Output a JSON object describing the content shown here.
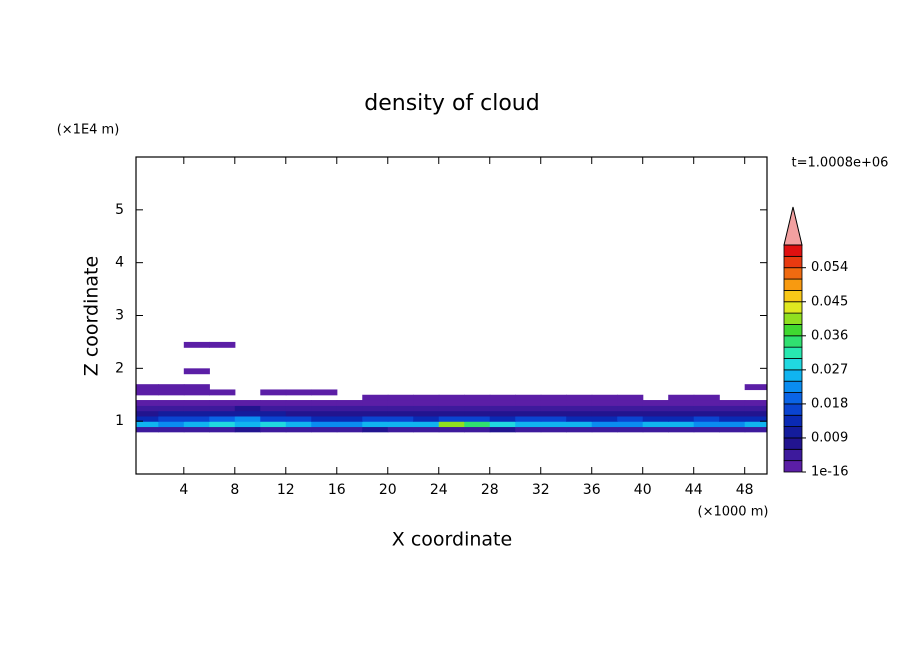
{
  "chart_data": {
    "type": "contour",
    "title": "density of cloud",
    "x_label": "X coordinate",
    "y_label": "Z coordinate",
    "x_unit": "(×1000 m)",
    "y_unit": "(×1E4 m)",
    "time_label": "t=1.0008e+06",
    "xlim": [
      0.25,
      49.75
    ],
    "ylim": [
      0,
      6
    ],
    "xticks": [
      4,
      8,
      12,
      16,
      20,
      24,
      28,
      32,
      36,
      40,
      44,
      48
    ],
    "yticks": [
      1,
      2,
      3,
      4,
      5
    ],
    "levels": [
      1e-16,
      0.003,
      0.006,
      0.009,
      0.012,
      0.015,
      0.018,
      0.021,
      0.024,
      0.027,
      0.03,
      0.033,
      0.036,
      0.039,
      0.042,
      0.045,
      0.048,
      0.051,
      0.054,
      0.057,
      0.06
    ],
    "colors": [
      "#5b1ea6",
      "#3d1a9c",
      "#22148f",
      "#141c9c",
      "#0a2ab4",
      "#0a44d0",
      "#0a64e6",
      "#0a8cf0",
      "#10b4f0",
      "#20d8e0",
      "#28e8b0",
      "#30e070",
      "#40d830",
      "#90e020",
      "#e0e820",
      "#f8c818",
      "#f89a10",
      "#f06a10",
      "#e83a10",
      "#e01010"
    ],
    "extend_color": "#f2a0a0",
    "colorbar_ticks": [
      {
        "value": 1e-16,
        "label": "1e-16"
      },
      0.009,
      0.018,
      0.027,
      0.036,
      0.045,
      0.054
    ],
    "x": [
      1,
      3,
      5,
      7,
      9,
      11,
      13,
      15,
      17,
      19,
      21,
      23,
      25,
      27,
      29,
      31,
      33,
      35,
      37,
      39,
      41,
      43,
      45,
      47,
      49
    ],
    "y": [
      0.85,
      0.95,
      1.05,
      1.15,
      1.25,
      1.35,
      1.45,
      1.55,
      1.65,
      1.75,
      1.85,
      1.95,
      2.05,
      2.15,
      2.25,
      2.35,
      2.45
    ],
    "z": [
      [
        0.005,
        0.005,
        0.004,
        0.005,
        0.006,
        0.005,
        0.004,
        0.005,
        0.005,
        0.006,
        0.005,
        0.005,
        0.005,
        0.005,
        0.006,
        0.005,
        0.005,
        0.004,
        0.005,
        0.005,
        0.005,
        0.005,
        0.005,
        0.005,
        0.005
      ],
      [
        0.026,
        0.022,
        0.024,
        0.027,
        0.025,
        0.028,
        0.024,
        0.023,
        0.022,
        0.024,
        0.026,
        0.025,
        0.039,
        0.033,
        0.027,
        0.025,
        0.024,
        0.026,
        0.023,
        0.022,
        0.024,
        0.025,
        0.023,
        0.022,
        0.026
      ],
      [
        0.014,
        0.016,
        0.015,
        0.018,
        0.021,
        0.017,
        0.015,
        0.013,
        0.014,
        0.016,
        0.015,
        0.014,
        0.016,
        0.015,
        0.014,
        0.016,
        0.015,
        0.013,
        0.014,
        0.015,
        0.014,
        0.013,
        0.015,
        0.014,
        0.012
      ],
      [
        0.008,
        0.009,
        0.01,
        0.011,
        0.009,
        0.01,
        0.008,
        0.007,
        0.008,
        0.007,
        0.006,
        0.007,
        0.008,
        0.007,
        0.006,
        0.008,
        0.007,
        0.006,
        0.007,
        0.006,
        0.007,
        0.006,
        0.007,
        0.006,
        0.007
      ],
      [
        0.004,
        0.005,
        0.004,
        0.005,
        0.006,
        0.005,
        0.004,
        0.003,
        0.004,
        0.003,
        0.004,
        0.005,
        0.004,
        0.003,
        0.004,
        0.003,
        0.004,
        0.003,
        0.004,
        0.003,
        0.004,
        0.003,
        0.003,
        0.004,
        0.003
      ],
      [
        0.002,
        0.001,
        0.001,
        0.001,
        0.001,
        0.001,
        0.001,
        0.001,
        0.001,
        0.002,
        0.001,
        0.001,
        0.001,
        0.002,
        0.001,
        0.001,
        0.002,
        0.001,
        0.001,
        0.001,
        0.001,
        0.002,
        0.001,
        0.001,
        0.002
      ],
      [
        null,
        null,
        null,
        null,
        null,
        null,
        null,
        null,
        null,
        0.001,
        0.001,
        0.001,
        0.001,
        0.001,
        0.001,
        0.001,
        0.001,
        0.001,
        0.001,
        0.001,
        null,
        0.001,
        0.001,
        null,
        null
      ],
      [
        0.001,
        0.001,
        0.001,
        0.001,
        null,
        0.001,
        0.001,
        0.001,
        null,
        null,
        null,
        null,
        null,
        null,
        null,
        null,
        null,
        null,
        null,
        null,
        null,
        null,
        null,
        null,
        null
      ],
      [
        0.001,
        0.001,
        0.001,
        null,
        null,
        null,
        null,
        null,
        null,
        null,
        null,
        null,
        null,
        null,
        null,
        null,
        null,
        null,
        null,
        null,
        null,
        null,
        null,
        null,
        0.001
      ],
      [
        null,
        null,
        null,
        null,
        null,
        null,
        null,
        null,
        null,
        null,
        null,
        null,
        null,
        null,
        null,
        null,
        null,
        null,
        null,
        null,
        null,
        null,
        null,
        null,
        null
      ],
      [
        null,
        null,
        null,
        null,
        null,
        null,
        null,
        null,
        null,
        null,
        null,
        null,
        null,
        null,
        null,
        null,
        null,
        null,
        null,
        null,
        null,
        null,
        null,
        null,
        null
      ],
      [
        null,
        null,
        0.001,
        null,
        null,
        null,
        null,
        null,
        null,
        null,
        null,
        null,
        null,
        null,
        null,
        null,
        null,
        null,
        null,
        null,
        null,
        null,
        null,
        null,
        null
      ],
      [
        null,
        null,
        null,
        null,
        null,
        null,
        null,
        null,
        null,
        null,
        null,
        null,
        null,
        null,
        null,
        null,
        null,
        null,
        null,
        null,
        null,
        null,
        null,
        null,
        null
      ],
      [
        null,
        null,
        null,
        null,
        null,
        null,
        null,
        null,
        null,
        null,
        null,
        null,
        null,
        null,
        null,
        null,
        null,
        null,
        null,
        null,
        null,
        null,
        null,
        null,
        null
      ],
      [
        null,
        null,
        null,
        null,
        null,
        null,
        null,
        null,
        null,
        null,
        null,
        null,
        null,
        null,
        null,
        null,
        null,
        null,
        null,
        null,
        null,
        null,
        null,
        null,
        null
      ],
      [
        null,
        null,
        null,
        null,
        null,
        null,
        null,
        null,
        null,
        null,
        null,
        null,
        null,
        null,
        null,
        null,
        null,
        null,
        null,
        null,
        null,
        null,
        null,
        null,
        null
      ],
      [
        null,
        null,
        0.001,
        0.001,
        null,
        null,
        null,
        null,
        null,
        null,
        null,
        null,
        null,
        null,
        null,
        null,
        null,
        null,
        null,
        null,
        null,
        null,
        null,
        null,
        null
      ]
    ]
  }
}
